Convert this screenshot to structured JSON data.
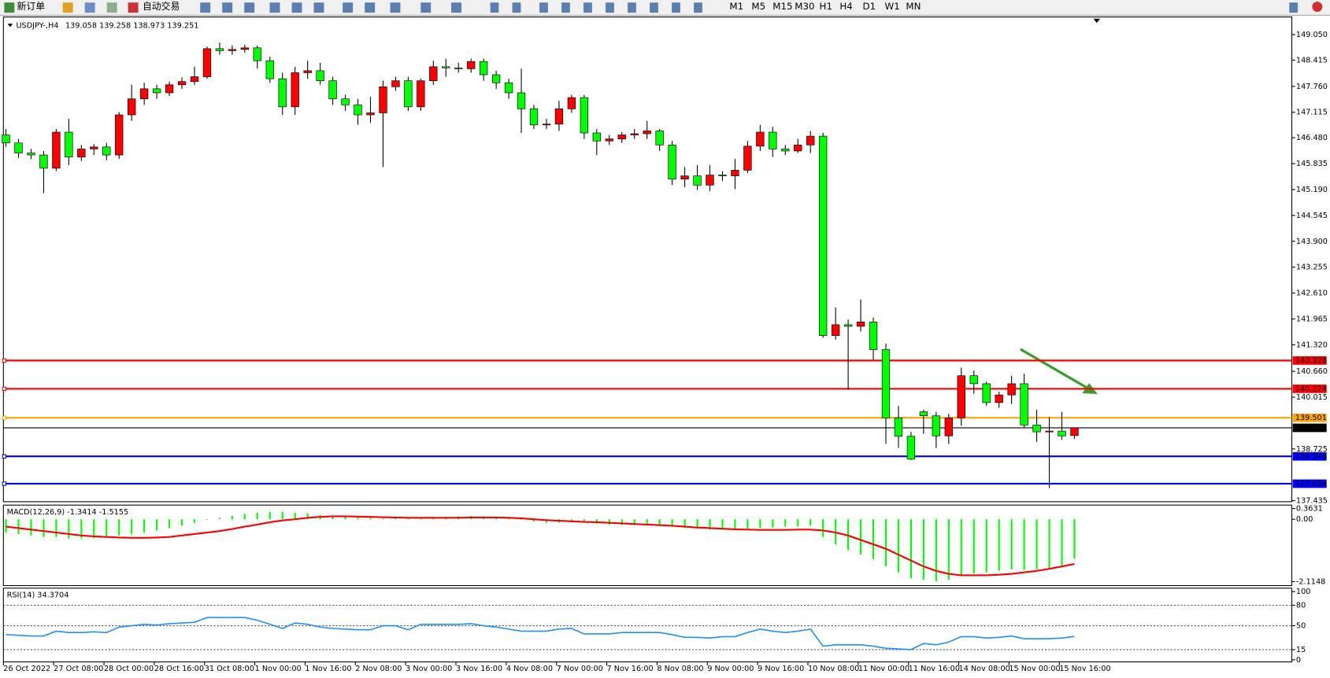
{
  "toolbar": {
    "buttons": [
      "新订单",
      "自动交易"
    ],
    "timeframes": [
      "M1",
      "M5",
      "M15",
      "M30",
      "H1",
      "H4",
      "D1",
      "W1",
      "MN"
    ]
  },
  "chart_data": [
    {
      "type": "candlestick",
      "title": "USDJPY-,H4",
      "subtitle": "139.058 139.258 138.973 139.251",
      "bull_color": "#ff0000",
      "bear_color": "#00ff00",
      "categories": [
        "26 Oct 2022",
        null,
        null,
        null,
        "27 Oct 08:00",
        null,
        null,
        null,
        "28 Oct 00:00",
        null,
        null,
        null,
        "28 Oct 16:00",
        null,
        null,
        null,
        "31 Oct 08:00",
        null,
        null,
        null,
        "1 Nov 00:00",
        null,
        null,
        null,
        "1 Nov 16:00",
        null,
        null,
        null,
        "2 Nov 08:00",
        null,
        null,
        null,
        "3 Nov 00:00",
        null,
        null,
        null,
        "3 Nov 16:00",
        null,
        null,
        null,
        "4 Nov 08:00",
        null,
        null,
        null,
        "7 Nov 00:00",
        null,
        null,
        null,
        "7 Nov 16:00",
        null,
        null,
        null,
        "8 Nov 08:00",
        null,
        null,
        null,
        "9 Nov 00:00",
        null,
        null,
        null,
        "9 Nov 16:00",
        null,
        null,
        null,
        "10 Nov 08:00",
        null,
        null,
        null,
        "11 Nov 00:00",
        null,
        null,
        null,
        "11 Nov 16:00",
        null,
        null,
        null,
        "14 Nov 08:00",
        null,
        null,
        null,
        "15 Nov 00:00",
        null,
        null,
        null,
        "15 Nov 16:00",
        null
      ],
      "ohlc": [
        [
          146.55,
          146.7,
          146.25,
          146.35
        ],
        [
          146.35,
          146.45,
          145.98,
          146.1
        ],
        [
          146.1,
          146.2,
          145.95,
          146.05
        ],
        [
          146.05,
          146.15,
          145.1,
          145.72
        ],
        [
          145.72,
          146.7,
          145.65,
          146.62
        ],
        [
          146.62,
          146.95,
          145.8,
          146.0
        ],
        [
          146.0,
          146.3,
          145.9,
          146.2
        ],
        [
          146.2,
          146.32,
          146.05,
          146.25
        ],
        [
          146.25,
          146.35,
          145.92,
          146.05
        ],
        [
          146.05,
          147.12,
          145.95,
          147.05
        ],
        [
          147.05,
          147.8,
          146.9,
          147.45
        ],
        [
          147.45,
          147.85,
          147.3,
          147.7
        ],
        [
          147.7,
          147.8,
          147.45,
          147.6
        ],
        [
          147.6,
          147.88,
          147.52,
          147.8
        ],
        [
          147.8,
          147.98,
          147.7,
          147.88
        ],
        [
          147.88,
          148.25,
          147.8,
          148.0
        ],
        [
          148.0,
          148.75,
          147.95,
          148.7
        ],
        [
          148.7,
          148.85,
          148.55,
          148.65
        ],
        [
          148.65,
          148.78,
          148.55,
          148.68
        ],
        [
          148.68,
          148.8,
          148.6,
          148.72
        ],
        [
          148.72,
          148.78,
          148.2,
          148.4
        ],
        [
          148.4,
          148.5,
          147.85,
          147.95
        ],
        [
          147.95,
          148.1,
          147.05,
          147.25
        ],
        [
          147.25,
          148.25,
          147.05,
          148.1
        ],
        [
          148.1,
          148.4,
          147.95,
          148.15
        ],
        [
          148.15,
          148.35,
          147.8,
          147.9
        ],
        [
          147.9,
          148.0,
          147.3,
          147.45
        ],
        [
          147.45,
          147.55,
          147.15,
          147.3
        ],
        [
          147.3,
          147.45,
          146.8,
          147.05
        ],
        [
          147.05,
          147.5,
          146.85,
          147.1
        ],
        [
          147.1,
          147.9,
          145.75,
          147.75
        ],
        [
          147.75,
          148.0,
          147.65,
          147.9
        ],
        [
          147.9,
          148.0,
          147.15,
          147.25
        ],
        [
          147.25,
          147.95,
          147.15,
          147.9
        ],
        [
          147.9,
          148.4,
          147.8,
          148.25
        ],
        [
          148.25,
          148.45,
          148.0,
          148.22
        ],
        [
          148.22,
          148.35,
          148.1,
          148.2
        ],
        [
          148.2,
          148.45,
          148.1,
          148.38
        ],
        [
          148.38,
          148.45,
          147.9,
          148.05
        ],
        [
          148.05,
          148.15,
          147.7,
          147.85
        ],
        [
          147.85,
          147.95,
          147.45,
          147.6
        ],
        [
          147.6,
          148.2,
          146.6,
          147.2
        ],
        [
          147.2,
          147.3,
          146.7,
          146.8
        ],
        [
          146.8,
          146.95,
          146.7,
          146.82
        ],
        [
          146.82,
          147.4,
          146.65,
          147.2
        ],
        [
          147.2,
          147.55,
          147.1,
          147.48
        ],
        [
          147.48,
          147.55,
          146.45,
          146.6
        ],
        [
          146.6,
          146.7,
          146.05,
          146.4
        ],
        [
          146.4,
          146.55,
          146.3,
          146.45
        ],
        [
          146.45,
          146.62,
          146.35,
          146.55
        ],
        [
          146.55,
          146.7,
          146.45,
          146.58
        ],
        [
          146.58,
          146.9,
          146.45,
          146.65
        ],
        [
          146.65,
          146.7,
          146.15,
          146.3
        ],
        [
          146.3,
          146.4,
          145.3,
          145.45
        ],
        [
          145.45,
          145.75,
          145.25,
          145.53
        ],
        [
          145.53,
          145.8,
          145.18,
          145.3
        ],
        [
          145.3,
          145.8,
          145.15,
          145.55
        ],
        [
          145.55,
          145.65,
          145.4,
          145.53
        ],
        [
          145.53,
          145.95,
          145.2,
          145.67
        ],
        [
          145.67,
          146.4,
          145.6,
          146.27
        ],
        [
          146.27,
          146.8,
          146.15,
          146.62
        ],
        [
          146.62,
          146.75,
          146.0,
          146.2
        ],
        [
          146.2,
          146.3,
          146.05,
          146.15
        ],
        [
          146.15,
          146.45,
          146.1,
          146.3
        ],
        [
          146.3,
          146.65,
          146.1,
          146.52
        ],
        [
          146.52,
          146.6,
          141.5,
          141.55
        ],
        [
          141.55,
          142.25,
          141.45,
          141.82
        ],
        [
          141.82,
          141.95,
          140.2,
          141.78
        ],
        [
          141.78,
          142.45,
          141.65,
          141.89
        ],
        [
          141.89,
          142.0,
          140.95,
          141.2
        ],
        [
          141.2,
          141.35,
          138.85,
          139.5
        ],
        [
          139.5,
          139.8,
          138.75,
          139.04
        ],
        [
          139.04,
          139.15,
          138.45,
          138.47
        ],
        [
          139.65,
          139.7,
          139.1,
          139.55
        ],
        [
          139.55,
          139.65,
          138.75,
          139.05
        ],
        [
          139.05,
          139.6,
          138.85,
          139.5
        ],
        [
          139.5,
          140.75,
          139.3,
          140.55
        ],
        [
          140.55,
          140.68,
          140.1,
          140.35
        ],
        [
          140.35,
          140.4,
          139.8,
          139.88
        ],
        [
          139.88,
          140.15,
          139.75,
          140.07
        ],
        [
          140.07,
          140.55,
          139.85,
          140.35
        ],
        [
          140.35,
          140.6,
          139.25,
          139.32
        ],
        [
          139.32,
          139.7,
          138.9,
          139.15
        ],
        [
          139.15,
          139.52,
          137.75,
          139.17
        ],
        [
          139.17,
          139.65,
          138.95,
          139.05
        ],
        [
          139.058,
          139.258,
          138.973,
          139.251
        ]
      ],
      "ylim": [
        137.41,
        149.49
      ],
      "yticks": [
        {
          "value": 149.05,
          "label": "149.050"
        },
        148.415,
        {
          "value": 147.76,
          "label": "147.760"
        },
        147.115,
        {
          "value": 146.48,
          "label": "146.480"
        },
        145.835,
        {
          "value": 145.19,
          "label": "145.190"
        },
        144.545,
        {
          "value": 143.9,
          "label": "143.900"
        },
        143.255,
        {
          "value": 142.61,
          "label": "142.610"
        },
        141.965,
        {
          "value": 141.32,
          "label": "141.320"
        },
        {
          "value": 140.66,
          "label": "140.660"
        },
        140.015,
        138.725,
        137.435
      ],
      "levels": [
        {
          "value": 140.928,
          "color": "#ff0000"
        },
        {
          "value": 140.224,
          "color": "#ff0000"
        },
        {
          "value": 139.501,
          "color": "#ffa500"
        },
        {
          "value": 139.251,
          "color": "#000000"
        },
        {
          "value": 138.54,
          "label": "138.540",
          "color": "#0000ff"
        },
        {
          "value": 137.859,
          "color": "#0000ff"
        }
      ]
    },
    {
      "type": "macd",
      "title": "MACD(12,26,9) -1.3414 -1.5155",
      "color": "#00ff00",
      "signal_color": "#ff0000",
      "values": [
        -0.45,
        -0.5,
        -0.55,
        -0.6,
        -0.6,
        -0.65,
        -0.65,
        -0.65,
        -0.62,
        -0.55,
        -0.5,
        -0.45,
        -0.38,
        -0.3,
        -0.22,
        -0.12,
        -0.02,
        0.05,
        0.12,
        0.18,
        0.22,
        0.25,
        0.25,
        0.22,
        0.2,
        0.15,
        0.12,
        0.1,
        0.08,
        0.05,
        0.03,
        0.03,
        0.02,
        0.03,
        0.05,
        0.08,
        0.1,
        0.12,
        0.1,
        0.08,
        0.05,
        0.0,
        -0.08,
        -0.12,
        -0.12,
        -0.1,
        -0.12,
        -0.15,
        -0.18,
        -0.2,
        -0.2,
        -0.2,
        -0.22,
        -0.25,
        -0.3,
        -0.32,
        -0.35,
        -0.35,
        -0.35,
        -0.32,
        -0.3,
        -0.28,
        -0.25,
        -0.25,
        -0.22,
        -0.6,
        -0.85,
        -1.05,
        -1.2,
        -1.35,
        -1.6,
        -1.8,
        -2.0,
        -2.05,
        -2.1,
        -2.05,
        -1.9,
        -1.85,
        -1.8,
        -1.75,
        -1.7,
        -1.72,
        -1.7,
        -1.68,
        -1.6,
        -1.3414
      ],
      "signal": [
        -0.25,
        -0.3,
        -0.35,
        -0.4,
        -0.45,
        -0.5,
        -0.55,
        -0.58,
        -0.6,
        -0.62,
        -0.63,
        -0.63,
        -0.62,
        -0.6,
        -0.55,
        -0.5,
        -0.45,
        -0.4,
        -0.33,
        -0.25,
        -0.18,
        -0.1,
        -0.04,
        0.0,
        0.05,
        0.08,
        0.1,
        0.1,
        0.09,
        0.08,
        0.07,
        0.06,
        0.05,
        0.05,
        0.05,
        0.05,
        0.05,
        0.06,
        0.06,
        0.06,
        0.05,
        0.03,
        0.0,
        -0.03,
        -0.05,
        -0.07,
        -0.09,
        -0.1,
        -0.12,
        -0.14,
        -0.16,
        -0.18,
        -0.2,
        -0.22,
        -0.25,
        -0.28,
        -0.3,
        -0.32,
        -0.34,
        -0.35,
        -0.36,
        -0.36,
        -0.36,
        -0.35,
        -0.35,
        -0.38,
        -0.45,
        -0.55,
        -0.7,
        -0.85,
        -1.0,
        -1.2,
        -1.4,
        -1.6,
        -1.75,
        -1.85,
        -1.9,
        -1.9,
        -1.9,
        -1.88,
        -1.85,
        -1.8,
        -1.75,
        -1.68,
        -1.6,
        -1.5155
      ],
      "ylim": [
        -2.25,
        0.48
      ],
      "yticks": [
        0.3631,
        {
          "value": 0,
          "label": "0.00"
        },
        -2.1148
      ]
    },
    {
      "type": "line",
      "title": "RSI(14) 34.3704",
      "color": "#1e90ff",
      "values": [
        37,
        36,
        35,
        35,
        42,
        40,
        40,
        41,
        40,
        48,
        50,
        52,
        51,
        53,
        54,
        55,
        62,
        62,
        62,
        62,
        58,
        52,
        46,
        54,
        52,
        48,
        46,
        45,
        44,
        44,
        50,
        50,
        44,
        52,
        52,
        52,
        52,
        53,
        50,
        48,
        45,
        42,
        42,
        42,
        45,
        46,
        38,
        38,
        38,
        40,
        40,
        40,
        40,
        37,
        33,
        33,
        32,
        34,
        34,
        40,
        45,
        42,
        40,
        42,
        45,
        20,
        22,
        22,
        22,
        20,
        17,
        16,
        15,
        24,
        22,
        26,
        34,
        34,
        32,
        33,
        35,
        31,
        31,
        31,
        32,
        34.3704
      ],
      "ylim": [
        -3,
        105
      ],
      "yticks": [
        100,
        80,
        50,
        15,
        0
      ],
      "levels": [
        80,
        50,
        15
      ]
    }
  ]
}
